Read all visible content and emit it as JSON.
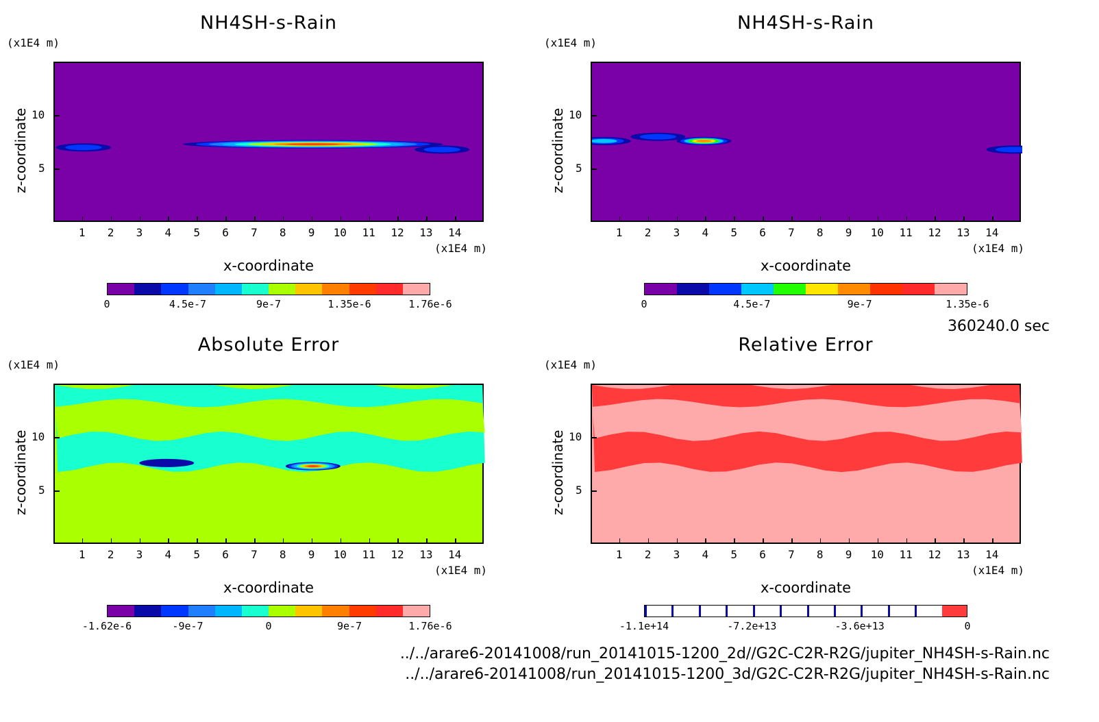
{
  "time_label": "360240.0 sec",
  "files": [
    "../../arare6-20141008/run_20141015-1200_2d//G2C-C2R-R2G/jupiter_NH4SH-s-Rain.nc",
    "../../arare6-20141008/run_20141015-1200_3d/G2C-C2R-R2G/jupiter_NH4SH-s-Rain.nc"
  ],
  "chart_data": [
    {
      "type": "heatmap",
      "title": "NH4SH-s-Rain",
      "xlabel": "x-coordinate",
      "ylabel": "z-coordinate",
      "x_unit": "(x1E4 m)",
      "y_unit": "(x1E4 m)",
      "xticks": [
        "1",
        "2",
        "3",
        "4",
        "5",
        "6",
        "7",
        "8",
        "9",
        "10",
        "11",
        "12",
        "13",
        "14"
      ],
      "yticks": [
        "5",
        "10"
      ],
      "xlim": [
        0,
        15
      ],
      "ylim": [
        0,
        15
      ],
      "background": "#7a00a8",
      "colorbar": {
        "colors": [
          "#7a00a8",
          "#0a0aa8",
          "#0037ff",
          "#1f7fff",
          "#00b7ff",
          "#18ffd0",
          "#aaff00",
          "#ffc400",
          "#ff7f00",
          "#ff3b00",
          "#ff2a2a",
          "#ffaaaa"
        ],
        "ticks": [
          "0",
          "4.5e-7",
          "9e-7",
          "1.35e-6",
          "1.76e-6"
        ]
      },
      "features": [
        {
          "x": 1.0,
          "z": 7.1,
          "level": 2
        },
        {
          "x": 9.0,
          "z": 7.4,
          "level": 9
        },
        {
          "x": 13.5,
          "z": 6.9,
          "level": 2
        }
      ]
    },
    {
      "type": "heatmap",
      "title": "NH4SH-s-Rain",
      "xlabel": "x-coordinate",
      "ylabel": "z-coordinate",
      "x_unit": "(x1E4 m)",
      "y_unit": "(x1E4 m)",
      "xticks": [
        "1",
        "2",
        "3",
        "4",
        "5",
        "6",
        "7",
        "8",
        "9",
        "10",
        "11",
        "12",
        "13",
        "14"
      ],
      "yticks": [
        "5",
        "10"
      ],
      "xlim": [
        0,
        15
      ],
      "ylim": [
        0,
        15
      ],
      "background": "#7a00a8",
      "colorbar": {
        "colors": [
          "#7a00a8",
          "#0a0aa8",
          "#0037ff",
          "#00c8ff",
          "#22ff00",
          "#ffe600",
          "#ff8c00",
          "#ff3300",
          "#ff2a2a",
          "#ffaaaa"
        ],
        "ticks": [
          "0",
          "4.5e-7",
          "9e-7",
          "1.35e-6"
        ]
      },
      "features": [
        {
          "x": 0.4,
          "z": 7.7,
          "level": 3
        },
        {
          "x": 2.3,
          "z": 8.1,
          "level": 2
        },
        {
          "x": 3.9,
          "z": 7.7,
          "level": 6
        },
        {
          "x": 14.7,
          "z": 6.9,
          "level": 2
        }
      ]
    },
    {
      "type": "heatmap",
      "title": "Absolute Error",
      "xlabel": "x-coordinate",
      "ylabel": "z-coordinate",
      "x_unit": "(x1E4 m)",
      "y_unit": "(x1E4 m)",
      "xticks": [
        "1",
        "2",
        "3",
        "4",
        "5",
        "6",
        "7",
        "8",
        "9",
        "10",
        "11",
        "12",
        "13",
        "14"
      ],
      "yticks": [
        "5",
        "10"
      ],
      "xlim": [
        0,
        15
      ],
      "ylim": [
        0,
        15
      ],
      "background": "#aaff00",
      "colorbar": {
        "colors": [
          "#7a00a8",
          "#0a0aa8",
          "#0037ff",
          "#1f7fff",
          "#00b7ff",
          "#18ffd0",
          "#aaff00",
          "#ffc400",
          "#ff7f00",
          "#ff3b00",
          "#ff2a2a",
          "#ffaaaa"
        ],
        "ticks": [
          "-1.62e-6",
          "-9e-7",
          "0",
          "9e-7",
          "1.76e-6"
        ]
      },
      "features": [
        {
          "x": 3.9,
          "z": 7.7,
          "level": 1
        },
        {
          "x": 9.0,
          "z": 7.4,
          "level": 9
        }
      ]
    },
    {
      "type": "heatmap",
      "title": "Relative Error",
      "xlabel": "x-coordinate",
      "ylabel": "z-coordinate",
      "x_unit": "(x1E4 m)",
      "y_unit": "(x1E4 m)",
      "xticks": [
        "1",
        "2",
        "3",
        "4",
        "5",
        "6",
        "7",
        "8",
        "9",
        "10",
        "11",
        "12",
        "13",
        "14"
      ],
      "yticks": [
        "5",
        "10"
      ],
      "xlim": [
        0,
        15
      ],
      "ylim": [
        0,
        15
      ],
      "background": "#ffaaaa",
      "colorbar": {
        "colors": [
          "#ffffff",
          "#ffffff",
          "#ffffff",
          "#ffffff",
          "#ffffff",
          "#ffffff",
          "#ffffff",
          "#ffffff",
          "#ffffff",
          "#ffffff",
          "#ffffff",
          "#ff3b3b"
        ],
        "ticks": [
          "-1.1e+14",
          "-7.2e+13",
          "-3.6e+13",
          "0"
        ]
      },
      "features": []
    }
  ]
}
